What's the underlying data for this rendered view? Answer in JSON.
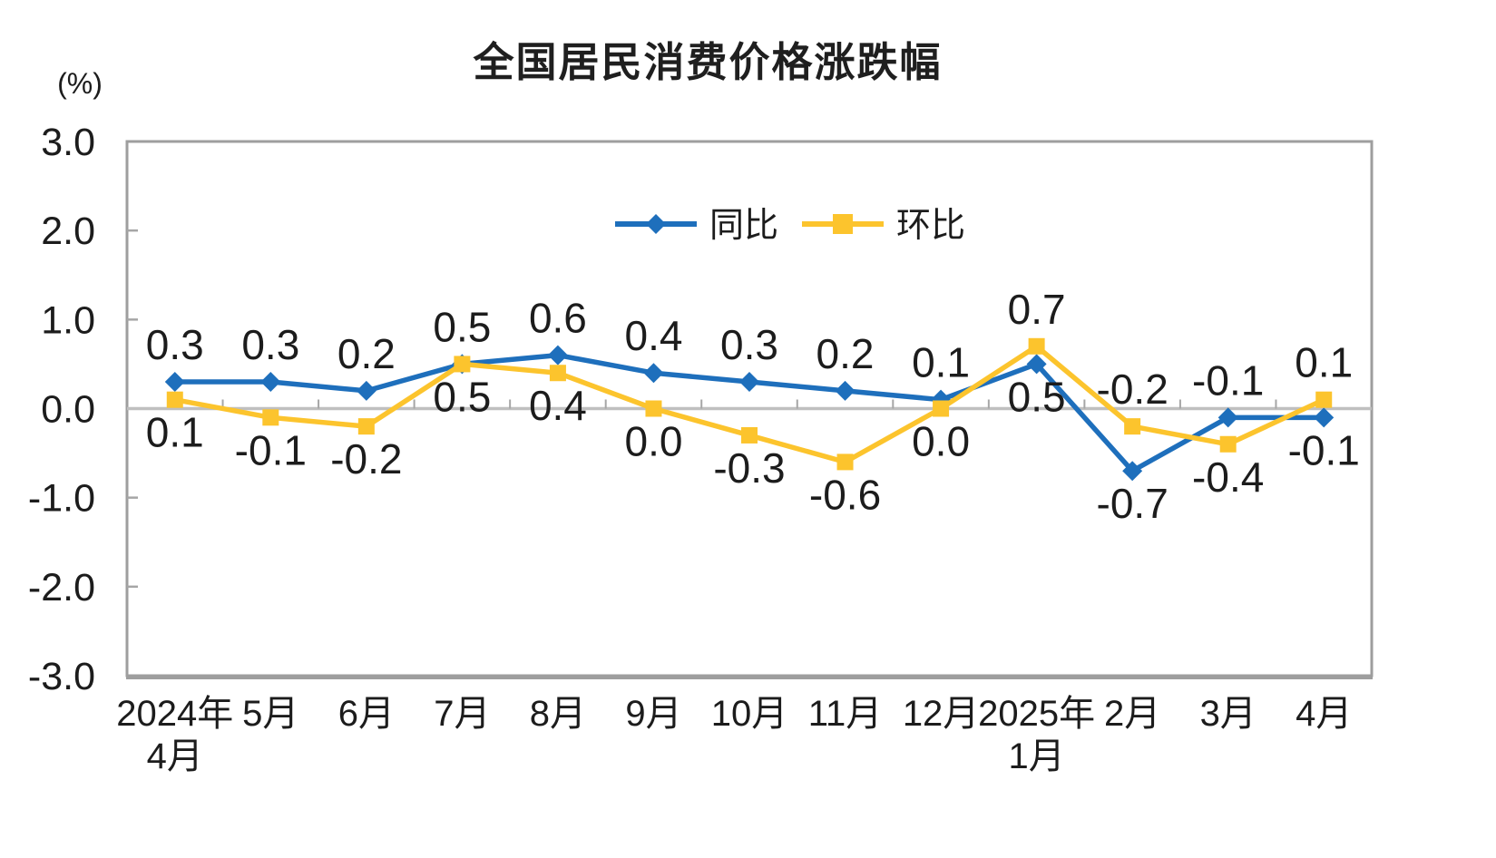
{
  "chart_data": {
    "type": "line",
    "title": "全国居民消费价格涨跌幅",
    "unit_label": "(%)",
    "categories": [
      [
        "2024年",
        "4月"
      ],
      [
        "5月"
      ],
      [
        "6月"
      ],
      [
        "7月"
      ],
      [
        "8月"
      ],
      [
        "9月"
      ],
      [
        "10月"
      ],
      [
        "11月"
      ],
      [
        "12月"
      ],
      [
        "2025年",
        "1月"
      ],
      [
        "2月"
      ],
      [
        "3月"
      ],
      [
        "4月"
      ]
    ],
    "series": [
      {
        "key": "yoy",
        "name": "同比",
        "marker": "diamond",
        "color": "#1E6FBC",
        "values": [
          0.3,
          0.3,
          0.2,
          0.5,
          0.6,
          0.4,
          0.3,
          0.2,
          0.1,
          0.5,
          -0.7,
          -0.1,
          -0.1
        ]
      },
      {
        "key": "mom",
        "name": "环比",
        "marker": "square",
        "color": "#FCC42D",
        "values": [
          0.1,
          -0.1,
          -0.2,
          0.5,
          0.4,
          0.0,
          -0.3,
          -0.6,
          0.0,
          0.7,
          -0.2,
          -0.4,
          0.1
        ]
      }
    ],
    "ylim": [
      -3.0,
      3.0
    ],
    "yticks": [
      3.0,
      2.0,
      1.0,
      0.0,
      -1.0,
      -2.0,
      -3.0
    ],
    "ytick_labels": [
      "3.0",
      "2.0",
      "1.0",
      "0.0",
      "-1.0",
      "-2.0",
      "-3.0"
    ],
    "grid": false,
    "data_labels": true,
    "legend_position": "inside-top-center",
    "colors": {
      "axis": "#9E9E9E",
      "zero_line": "#BFBFBF",
      "tick": "#A6A6A6",
      "text": "#1C1C1C",
      "background": "#FFFFFF"
    }
  }
}
